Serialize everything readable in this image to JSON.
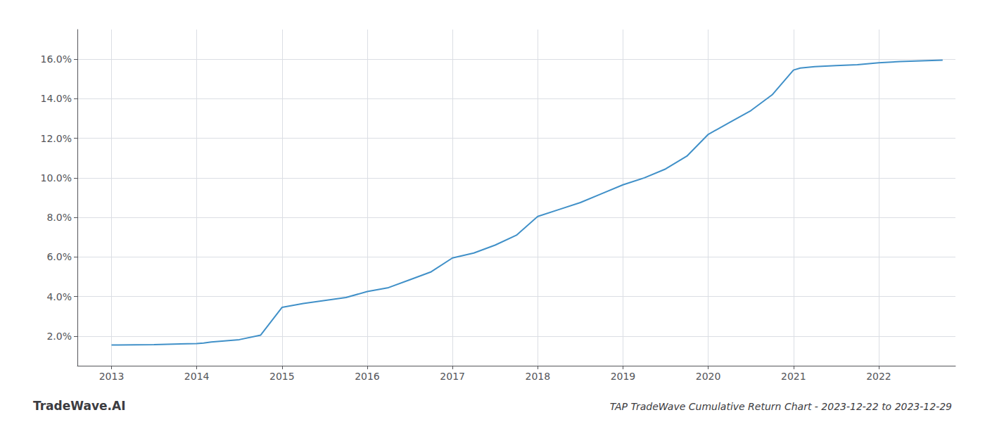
{
  "chart_data": {
    "type": "line",
    "title": "TAP TradeWave Cumulative Return Chart - 2023-12-22 to 2023-12-29",
    "annotations": [
      "TradeWave.AI"
    ],
    "x": [
      2013.0,
      2013.08,
      2013.5,
      2014.0,
      2014.08,
      2014.17,
      2014.5,
      2014.75,
      2015.0,
      2015.25,
      2015.5,
      2015.75,
      2016.0,
      2016.25,
      2016.5,
      2016.75,
      2017.0,
      2017.25,
      2017.5,
      2017.75,
      2018.0,
      2018.25,
      2018.5,
      2018.75,
      2019.0,
      2019.25,
      2019.5,
      2019.75,
      2020.0,
      2020.25,
      2020.5,
      2020.75,
      2021.0,
      2021.08,
      2021.25,
      2021.5,
      2021.75,
      2022.0,
      2022.25,
      2022.5,
      2022.75
    ],
    "values": [
      1.55,
      1.55,
      1.57,
      1.62,
      1.65,
      1.7,
      1.82,
      2.05,
      3.45,
      3.65,
      3.8,
      3.95,
      4.25,
      4.45,
      4.85,
      5.25,
      5.95,
      6.2,
      6.6,
      7.1,
      8.05,
      8.4,
      8.75,
      9.2,
      9.65,
      10.0,
      10.45,
      11.1,
      12.2,
      12.8,
      13.4,
      14.2,
      15.45,
      15.55,
      15.62,
      15.68,
      15.72,
      15.82,
      15.88,
      15.92,
      15.95
    ],
    "color": "#4090c8",
    "xlim": [
      2012.6,
      2022.9
    ],
    "xticks": [
      2013,
      2014,
      2015,
      2016,
      2017,
      2018,
      2019,
      2020,
      2021,
      2022
    ],
    "ylim": [
      0.5,
      17.5
    ],
    "yticks": [
      {
        "value": 2.0,
        "label": "2.0%"
      },
      {
        "value": 4.0,
        "label": "4.0%"
      },
      {
        "value": 6.0,
        "label": "6.0%"
      },
      {
        "value": 8.0,
        "label": "8.0%"
      },
      {
        "value": 10.0,
        "label": "10.0%"
      },
      {
        "value": 12.0,
        "label": "12.0%"
      },
      {
        "value": 14.0,
        "label": "14.0%"
      },
      {
        "value": 16.0,
        "label": "16.0%"
      }
    ],
    "grid": true
  }
}
